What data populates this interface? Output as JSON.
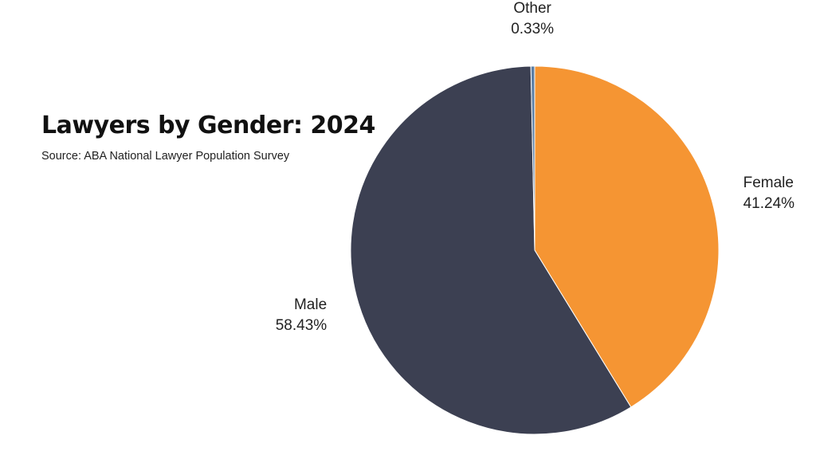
{
  "chart_data": {
    "type": "pie",
    "title": "Lawyers by Gender: 2024",
    "subtitle": "Source: ABA National Lawyer Population Survey",
    "slices": [
      {
        "name": "Female",
        "value": 41.24,
        "label": "41.24%",
        "color": "#f59533"
      },
      {
        "name": "Male",
        "value": 58.43,
        "label": "58.43%",
        "color": "#3c4052"
      },
      {
        "name": "Other",
        "value": 0.33,
        "label": "0.33%",
        "color": "#5b7fa6"
      }
    ]
  }
}
